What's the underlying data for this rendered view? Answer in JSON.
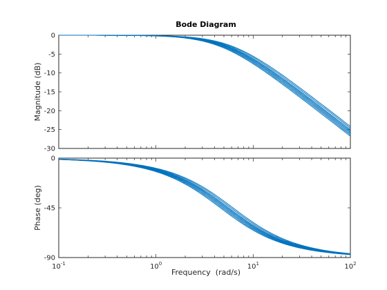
{
  "chart_data": [
    {
      "type": "line",
      "panel": "magnitude",
      "title": "Bode Diagram",
      "ylabel": "Magnitude (dB)",
      "xlabel": "",
      "x_scale": "log",
      "xlim": [
        0.1,
        100
      ],
      "ylim": [
        -30,
        0
      ],
      "yticks": [
        0,
        -5,
        -10,
        -15,
        -20,
        -25,
        -30
      ],
      "ytick_labels": [
        "0",
        "-5",
        "-10",
        "-15",
        "-20",
        "-25",
        "-30"
      ],
      "grid": false,
      "model": "first-order low-pass, |H| = -10*log10(1 + (w/wc)^2), wc varies per series",
      "series": [
        {
          "corner_rad_s": 4.6
        },
        {
          "corner_rad_s": 4.8
        },
        {
          "corner_rad_s": 5.0
        },
        {
          "corner_rad_s": 5.2
        },
        {
          "corner_rad_s": 5.4
        },
        {
          "corner_rad_s": 5.6
        },
        {
          "corner_rad_s": 5.9
        },
        {
          "corner_rad_s": 6.2
        }
      ]
    },
    {
      "type": "line",
      "panel": "phase",
      "title": "",
      "ylabel": "Phase (deg)",
      "xlabel": "Frequency  (rad/s)",
      "x_scale": "log",
      "xlim": [
        0.1,
        100
      ],
      "ylim": [
        -90,
        0
      ],
      "yticks": [
        0,
        -45,
        -90
      ],
      "ytick_labels": [
        "0",
        "-45",
        "-90"
      ],
      "xtick_labels": [
        {
          "base": "10",
          "exp": "-1"
        },
        {
          "base": "10",
          "exp": "0"
        },
        {
          "base": "10",
          "exp": "1"
        },
        {
          "base": "10",
          "exp": "2"
        }
      ],
      "grid": false,
      "model": "phase = -atan(w/wc) in degrees, same corner set as magnitude",
      "series": [
        {
          "corner_rad_s": 4.6
        },
        {
          "corner_rad_s": 4.8
        },
        {
          "corner_rad_s": 5.0
        },
        {
          "corner_rad_s": 5.2
        },
        {
          "corner_rad_s": 5.4
        },
        {
          "corner_rad_s": 5.6
        },
        {
          "corner_rad_s": 5.9
        },
        {
          "corner_rad_s": 6.2
        }
      ]
    }
  ],
  "colors": {
    "curve": "#0072BD",
    "axes": "#262626",
    "background": "#ffffff"
  }
}
